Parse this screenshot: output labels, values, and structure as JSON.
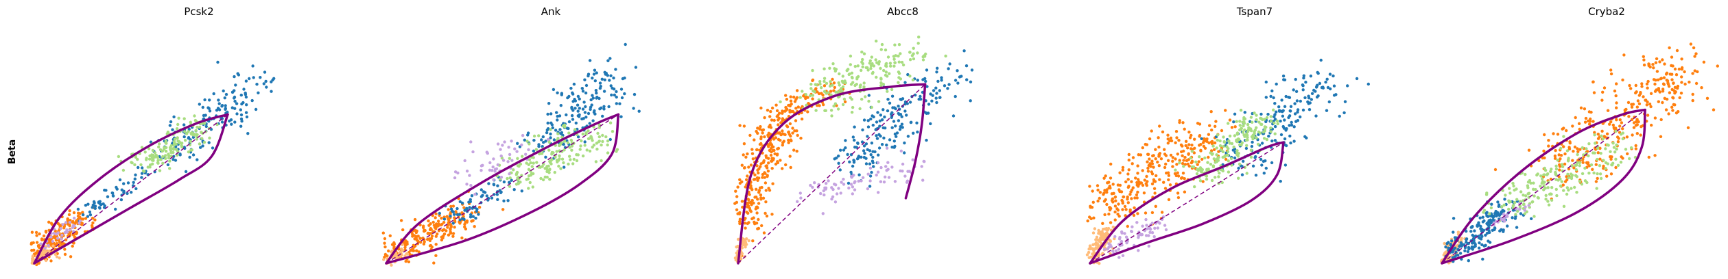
{
  "row_label": "Beta",
  "colors": {
    "dark_blue": "#1f77b4",
    "light_green": "#a8dd80",
    "orange": "#ff7f0e",
    "peach": "#ffbb78",
    "lavender": "#c5a3e0",
    "fit_curve": "#800080"
  },
  "chart_data": [
    {
      "type": "scatter",
      "title": "Pcsk2",
      "xlabel": "",
      "ylabel": "",
      "xlim": [
        0,
        1
      ],
      "ylim": [
        0,
        1
      ],
      "grid": false,
      "dynamics_fit": {
        "upper": [
          [
            0,
            0
          ],
          [
            0.08,
            0.2
          ],
          [
            0.2,
            0.36
          ],
          [
            0.35,
            0.5
          ],
          [
            0.5,
            0.6
          ],
          [
            0.6,
            0.64
          ]
        ],
        "lower": [
          [
            0,
            0
          ],
          [
            0.15,
            0.12
          ],
          [
            0.3,
            0.24
          ],
          [
            0.45,
            0.36
          ],
          [
            0.55,
            0.46
          ],
          [
            0.6,
            0.64
          ]
        ],
        "steady_state_line": [
          [
            0,
            0
          ],
          [
            0.6,
            0.64
          ]
        ]
      },
      "clusters": [
        {
          "color": "orange",
          "center": [
            0.06,
            0.1
          ],
          "axis": [
            0.08,
            0.09
          ],
          "spread": 0.04,
          "count": 220
        },
        {
          "color": "peach",
          "center": [
            0.02,
            0.03
          ],
          "axis": [
            0.03,
            0.03
          ],
          "spread": 0.02,
          "count": 60
        },
        {
          "color": "dark_blue",
          "center": [
            0.55,
            0.62
          ],
          "axis": [
            0.14,
            0.16
          ],
          "spread": 0.06,
          "count": 160
        },
        {
          "color": "dark_blue",
          "center": [
            0.25,
            0.3
          ],
          "axis": [
            0.1,
            0.1
          ],
          "spread": 0.03,
          "count": 60
        },
        {
          "color": "light_green",
          "center": [
            0.42,
            0.5
          ],
          "axis": [
            0.1,
            0.08
          ],
          "spread": 0.04,
          "count": 150
        },
        {
          "color": "lavender",
          "center": [
            0.08,
            0.12
          ],
          "axis": [
            0.05,
            0.05
          ],
          "spread": 0.02,
          "count": 30
        }
      ]
    },
    {
      "type": "scatter",
      "title": "Ank",
      "xlabel": "",
      "ylabel": "",
      "xlim": [
        0,
        1
      ],
      "ylim": [
        0,
        1
      ],
      "grid": false,
      "dynamics_fit": {
        "upper": [
          [
            0,
            0
          ],
          [
            0.1,
            0.17
          ],
          [
            0.3,
            0.35
          ],
          [
            0.5,
            0.5
          ],
          [
            0.65,
            0.6
          ],
          [
            0.72,
            0.64
          ]
        ],
        "lower": [
          [
            0,
            0
          ],
          [
            0.25,
            0.1
          ],
          [
            0.45,
            0.22
          ],
          [
            0.6,
            0.34
          ],
          [
            0.7,
            0.47
          ],
          [
            0.72,
            0.64
          ]
        ],
        "steady_state_line": [
          [
            0,
            0
          ],
          [
            0.72,
            0.64
          ]
        ]
      },
      "clusters": [
        {
          "color": "orange",
          "center": [
            0.12,
            0.12
          ],
          "axis": [
            0.13,
            0.1
          ],
          "spread": 0.05,
          "count": 230
        },
        {
          "color": "peach",
          "center": [
            0.03,
            0.03
          ],
          "axis": [
            0.03,
            0.02
          ],
          "spread": 0.02,
          "count": 40
        },
        {
          "color": "dark_blue",
          "center": [
            0.6,
            0.66
          ],
          "axis": [
            0.12,
            0.16
          ],
          "spread": 0.07,
          "count": 180
        },
        {
          "color": "dark_blue",
          "center": [
            0.3,
            0.28
          ],
          "axis": [
            0.1,
            0.08
          ],
          "spread": 0.04,
          "count": 70
        },
        {
          "color": "light_green",
          "center": [
            0.52,
            0.46
          ],
          "axis": [
            0.14,
            0.1
          ],
          "spread": 0.06,
          "count": 180
        },
        {
          "color": "lavender",
          "center": [
            0.35,
            0.45
          ],
          "axis": [
            0.12,
            0.1
          ],
          "spread": 0.05,
          "count": 50
        }
      ]
    },
    {
      "type": "scatter",
      "title": "Abcc8",
      "xlabel": "",
      "ylabel": "",
      "xlim": [
        0,
        1
      ],
      "ylim": [
        0,
        1
      ],
      "grid": false,
      "dynamics_fit": {
        "upper": [
          [
            0,
            0
          ],
          [
            0.04,
            0.38
          ],
          [
            0.14,
            0.6
          ],
          [
            0.3,
            0.72
          ],
          [
            0.48,
            0.76
          ],
          [
            0.58,
            0.77
          ]
        ],
        "lower": [
          [
            0.58,
            0.77
          ],
          [
            0.57,
            0.6
          ],
          [
            0.55,
            0.44
          ],
          [
            0.52,
            0.28
          ]
        ],
        "steady_state_line": [
          [
            0,
            0
          ],
          [
            0.58,
            0.77
          ]
        ]
      },
      "clusters": [
        {
          "color": "orange",
          "center": [
            0.07,
            0.4
          ],
          "axis": [
            0.07,
            0.25
          ],
          "spread": 0.05,
          "count": 300
        },
        {
          "color": "orange",
          "center": [
            0.22,
            0.7
          ],
          "axis": [
            0.1,
            0.06
          ],
          "spread": 0.04,
          "count": 90
        },
        {
          "color": "peach",
          "center": [
            0.01,
            0.06
          ],
          "axis": [
            0.01,
            0.05
          ],
          "spread": 0.01,
          "count": 60
        },
        {
          "color": "dark_blue",
          "center": [
            0.5,
            0.62
          ],
          "axis": [
            0.16,
            0.2
          ],
          "spread": 0.07,
          "count": 200
        },
        {
          "color": "light_green",
          "center": [
            0.38,
            0.8
          ],
          "axis": [
            0.16,
            0.1
          ],
          "spread": 0.07,
          "count": 190
        },
        {
          "color": "lavender",
          "center": [
            0.38,
            0.36
          ],
          "axis": [
            0.18,
            0.08
          ],
          "spread": 0.05,
          "count": 80
        }
      ]
    },
    {
      "type": "scatter",
      "title": "Tspan7",
      "xlabel": "",
      "ylabel": "",
      "xlim": [
        0,
        1
      ],
      "ylim": [
        0,
        1
      ],
      "grid": false,
      "dynamics_fit": {
        "upper": [
          [
            0,
            0
          ],
          [
            0.1,
            0.18
          ],
          [
            0.25,
            0.32
          ],
          [
            0.42,
            0.42
          ],
          [
            0.55,
            0.5
          ],
          [
            0.6,
            0.52
          ]
        ],
        "lower": [
          [
            0,
            0
          ],
          [
            0.18,
            0.09
          ],
          [
            0.35,
            0.17
          ],
          [
            0.5,
            0.27
          ],
          [
            0.58,
            0.38
          ],
          [
            0.6,
            0.52
          ]
        ],
        "steady_state_line": [
          [
            0,
            0
          ],
          [
            0.6,
            0.52
          ]
        ]
      },
      "clusters": [
        {
          "color": "orange",
          "center": [
            0.2,
            0.38
          ],
          "axis": [
            0.18,
            0.17
          ],
          "spread": 0.08,
          "count": 320
        },
        {
          "color": "peach",
          "center": [
            0.03,
            0.08
          ],
          "axis": [
            0.02,
            0.07
          ],
          "spread": 0.02,
          "count": 120
        },
        {
          "color": "dark_blue",
          "center": [
            0.58,
            0.6
          ],
          "axis": [
            0.14,
            0.18
          ],
          "spread": 0.08,
          "count": 200
        },
        {
          "color": "light_green",
          "center": [
            0.44,
            0.5
          ],
          "axis": [
            0.1,
            0.12
          ],
          "spread": 0.05,
          "count": 190
        },
        {
          "color": "lavender",
          "center": [
            0.15,
            0.12
          ],
          "axis": [
            0.08,
            0.06
          ],
          "spread": 0.03,
          "count": 70
        }
      ]
    },
    {
      "type": "scatter",
      "title": "Cryba2",
      "xlabel": "",
      "ylabel": "",
      "xlim": [
        0,
        1
      ],
      "ylim": [
        0,
        1
      ],
      "grid": false,
      "dynamics_fit": {
        "upper": [
          [
            0,
            0
          ],
          [
            0.1,
            0.2
          ],
          [
            0.25,
            0.4
          ],
          [
            0.42,
            0.56
          ],
          [
            0.56,
            0.64
          ],
          [
            0.63,
            0.66
          ]
        ],
        "lower": [
          [
            0,
            0
          ],
          [
            0.22,
            0.1
          ],
          [
            0.42,
            0.22
          ],
          [
            0.56,
            0.36
          ],
          [
            0.62,
            0.5
          ],
          [
            0.63,
            0.66
          ]
        ],
        "steady_state_line": [
          [
            0,
            0
          ],
          [
            0.63,
            0.66
          ]
        ]
      },
      "clusters": [
        {
          "color": "orange",
          "center": [
            0.55,
            0.62
          ],
          "axis": [
            0.2,
            0.24
          ],
          "spread": 0.1,
          "count": 340
        },
        {
          "color": "peach",
          "center": [
            0.03,
            0.06
          ],
          "axis": [
            0.02,
            0.05
          ],
          "spread": 0.02,
          "count": 70
        },
        {
          "color": "dark_blue",
          "center": [
            0.12,
            0.14
          ],
          "axis": [
            0.08,
            0.1
          ],
          "spread": 0.04,
          "count": 200
        },
        {
          "color": "light_green",
          "center": [
            0.36,
            0.36
          ],
          "axis": [
            0.18,
            0.14
          ],
          "spread": 0.06,
          "count": 200
        },
        {
          "color": "lavender",
          "center": [
            0.22,
            0.22
          ],
          "axis": [
            0.06,
            0.05
          ],
          "spread": 0.02,
          "count": 20
        }
      ]
    }
  ]
}
